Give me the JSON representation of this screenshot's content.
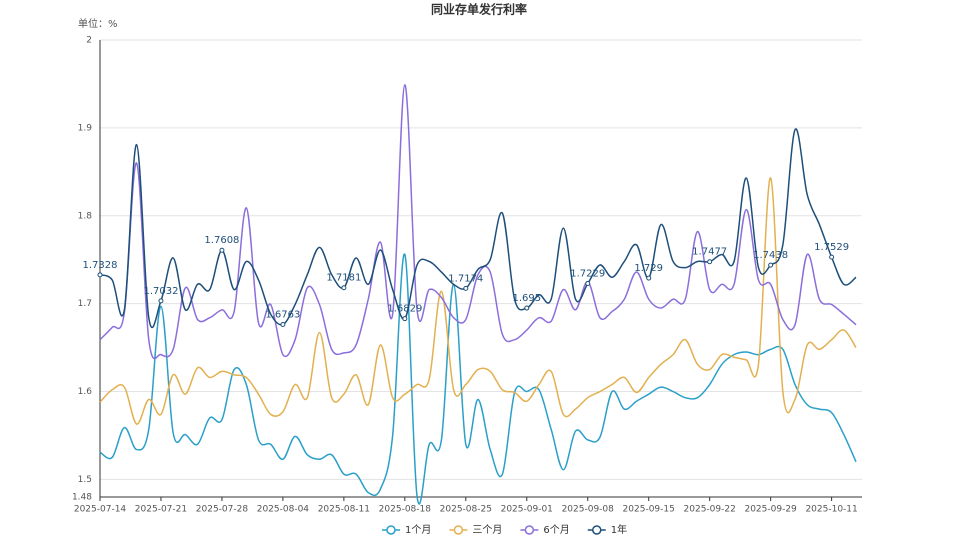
{
  "chart_data": {
    "type": "line",
    "title": "同业存单发行利率",
    "y_label": "单位：%",
    "categories": [
      "2025-07-14",
      null,
      null,
      null,
      null,
      "2025-07-21",
      null,
      null,
      null,
      null,
      "2025-07-28",
      null,
      null,
      null,
      null,
      "2025-08-04",
      null,
      null,
      null,
      null,
      "2025-08-11",
      null,
      null,
      null,
      null,
      "2025-08-18",
      null,
      null,
      null,
      null,
      "2025-08-25",
      null,
      null,
      null,
      null,
      "2025-09-01",
      null,
      null,
      null,
      null,
      "2025-09-08",
      null,
      null,
      null,
      null,
      "2025-09-15",
      null,
      null,
      null,
      null,
      "2025-09-22",
      null,
      null,
      null,
      null,
      "2025-09-29",
      null,
      null,
      null,
      null,
      "2025-10-11",
      null,
      null
    ],
    "ylim": [
      1.48,
      2
    ],
    "yticks": [
      1.48,
      1.5,
      1.6,
      1.7,
      1.8,
      1.9,
      2
    ],
    "grid": true,
    "smooth": true,
    "legend": "bottom",
    "series": [
      {
        "name": "1个月",
        "color": "#2a9fc9",
        "values": [
          1.531,
          1.525,
          1.559,
          1.534,
          1.557,
          1.697,
          1.553,
          1.551,
          1.54,
          1.57,
          1.568,
          1.625,
          1.608,
          1.545,
          1.54,
          1.523,
          1.549,
          1.528,
          1.523,
          1.528,
          1.506,
          1.506,
          1.485,
          1.489,
          1.55,
          1.756,
          1.481,
          1.54,
          1.545,
          1.722,
          1.54,
          1.591,
          1.534,
          1.506,
          1.599,
          1.6,
          1.602,
          1.557,
          1.511,
          1.555,
          1.545,
          1.548,
          1.6,
          1.58,
          1.589,
          1.597,
          1.605,
          1.6,
          1.593,
          1.593,
          1.608,
          1.631,
          1.642,
          1.645,
          1.642,
          1.648,
          1.648,
          1.608,
          1.585,
          1.58,
          1.576,
          1.551,
          1.52
        ]
      },
      {
        "name": "三个月",
        "color": "#e2b04f",
        "values": [
          1.588,
          1.602,
          1.605,
          1.563,
          1.591,
          1.574,
          1.619,
          1.597,
          1.627,
          1.616,
          1.623,
          1.619,
          1.616,
          1.597,
          1.574,
          1.577,
          1.608,
          1.593,
          1.667,
          1.593,
          1.597,
          1.619,
          1.585,
          1.653,
          1.593,
          1.597,
          1.608,
          1.614,
          1.714,
          1.602,
          1.608,
          1.625,
          1.623,
          1.602,
          1.599,
          1.589,
          1.608,
          1.623,
          1.574,
          1.58,
          1.593,
          1.6,
          1.608,
          1.616,
          1.599,
          1.616,
          1.631,
          1.642,
          1.659,
          1.631,
          1.625,
          1.642,
          1.639,
          1.636,
          1.631,
          1.843,
          1.6,
          1.591,
          1.653,
          1.648,
          1.659,
          1.67,
          1.65
        ]
      },
      {
        "name": "6个月",
        "color": "#8b6edc",
        "values": [
          1.659,
          1.673,
          1.69,
          1.86,
          1.659,
          1.642,
          1.648,
          1.718,
          1.682,
          1.684,
          1.693,
          1.691,
          1.809,
          1.678,
          1.699,
          1.642,
          1.659,
          1.718,
          1.699,
          1.648,
          1.644,
          1.653,
          1.705,
          1.77,
          1.688,
          1.949,
          1.693,
          1.716,
          1.707,
          1.684,
          1.682,
          1.733,
          1.736,
          1.665,
          1.659,
          1.67,
          1.684,
          1.68,
          1.716,
          1.693,
          1.725,
          1.684,
          1.691,
          1.705,
          1.736,
          1.705,
          1.695,
          1.705,
          1.705,
          1.782,
          1.716,
          1.722,
          1.722,
          1.807,
          1.727,
          1.722,
          1.682,
          1.676,
          1.756,
          1.705,
          1.699,
          1.688,
          1.676
        ]
      },
      {
        "name": "1年",
        "color": "#1e4f7a",
        "values": [
          1.7328,
          1.727,
          1.693,
          1.881,
          1.684,
          1.7032,
          1.752,
          1.693,
          1.722,
          1.716,
          1.7608,
          1.716,
          1.748,
          1.727,
          1.688,
          1.6763,
          1.699,
          1.733,
          1.764,
          1.733,
          1.7181,
          1.752,
          1.722,
          1.761,
          1.716,
          1.6829,
          1.744,
          1.748,
          1.736,
          1.722,
          1.7174,
          1.739,
          1.75,
          1.803,
          1.705,
          1.695,
          1.71,
          1.705,
          1.786,
          1.705,
          1.7229,
          1.744,
          1.73,
          1.748,
          1.767,
          1.729,
          1.79,
          1.748,
          1.741,
          1.748,
          1.7477,
          1.756,
          1.748,
          1.843,
          1.741,
          1.7438,
          1.767,
          1.898,
          1.824,
          1.79,
          1.7529,
          1.722,
          1.73
        ],
        "value_labels": [
          "1.7328",
          null,
          null,
          null,
          null,
          "1.7032",
          null,
          null,
          null,
          null,
          "1.7608",
          null,
          null,
          null,
          null,
          "1.6763",
          null,
          null,
          null,
          null,
          "1.7181",
          null,
          null,
          null,
          null,
          "1.6829",
          null,
          null,
          null,
          null,
          "1.7174",
          null,
          null,
          null,
          null,
          "1.695",
          null,
          null,
          null,
          null,
          "1.7229",
          null,
          null,
          null,
          null,
          "1.729",
          null,
          null,
          null,
          null,
          "1.7477",
          null,
          null,
          null,
          null,
          "1.7438",
          null,
          null,
          null,
          null,
          "1.7529",
          null,
          null
        ]
      }
    ]
  }
}
